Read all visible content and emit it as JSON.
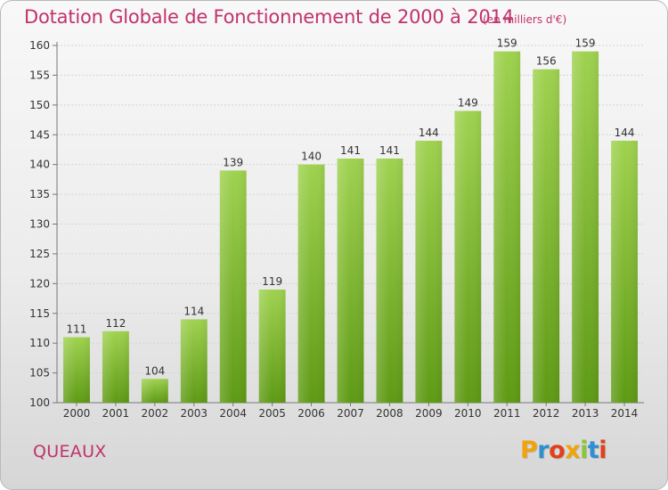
{
  "header": {
    "title": "Dotation Globale de Fonctionnement de 2000 à 2014",
    "unit": "(en milliers d'€)"
  },
  "footer": {
    "commune": "QUEAUX",
    "logo_text": "Proxiti"
  },
  "colors": {
    "accent": "#c0336b",
    "bar_top": "#9fd24f",
    "bar_bottom": "#5e9a14",
    "logo_letters": [
      "#f0a30a",
      "#2e8fd1",
      "#e2401c",
      "#f0a30a",
      "#8cc43b",
      "#2e8fd1",
      "#e2401c"
    ]
  },
  "chart_data": {
    "type": "bar",
    "title": "Dotation Globale de Fonctionnement de 2000 à 2014",
    "subtitle": "(en milliers d'€)",
    "xlabel": "",
    "ylabel": "",
    "categories": [
      "2000",
      "2001",
      "2002",
      "2003",
      "2004",
      "2005",
      "2006",
      "2007",
      "2008",
      "2009",
      "2010",
      "2011",
      "2012",
      "2013",
      "2014"
    ],
    "values": [
      111,
      112,
      104,
      114,
      139,
      119,
      140,
      141,
      141,
      144,
      149,
      159,
      156,
      159,
      144
    ],
    "ylim": [
      100,
      160
    ],
    "yticks": [
      100,
      105,
      110,
      115,
      120,
      125,
      130,
      135,
      140,
      145,
      150,
      155,
      160
    ],
    "grid": true,
    "legend": "none"
  }
}
